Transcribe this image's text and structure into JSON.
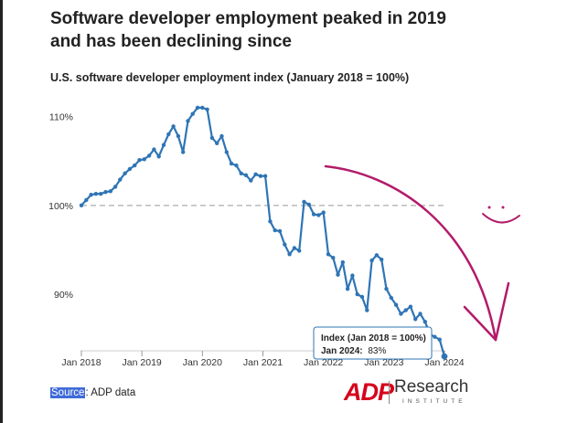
{
  "title": "Software developer employment peaked in 2019 and has been declining since",
  "subtitle": "U.S. software developer employment index (January 2018 = 100%)",
  "source": {
    "label": "Source",
    "text": ": ADP data"
  },
  "logo": {
    "mark": "ADP",
    "brand": "Research",
    "sub": "INSTITUTE"
  },
  "tooltip": {
    "header": "Index (Jan 2018 = 100%)",
    "date_label": "Jan 2024:",
    "value_label": "83%"
  },
  "colors": {
    "line": "#2f75b5",
    "reference": "#bbbbbb",
    "annotation": "#b31b6a",
    "tooltip_border": "#2f75b5"
  },
  "annotation": {
    "type": "hand-drawn downward arrow with smiley",
    "color": "#b31b6a"
  },
  "chart_data": {
    "type": "line",
    "title": "U.S. software developer employment index (January 2018 = 100%)",
    "x_ticks": [
      "Jan 2018",
      "Jan 2019",
      "Jan 2020",
      "Jan 2021",
      "Jan 2022",
      "Jan 2023",
      "Jan 2024"
    ],
    "y_ticks": [
      "90%",
      "100%",
      "110%"
    ],
    "y_tick_values": [
      90,
      100,
      110
    ],
    "ylim": [
      82.5,
      111.5
    ],
    "x_start": "2018-01",
    "x_end": "2024-01",
    "reference_line": 100,
    "grid": false,
    "series": [
      {
        "values": [
          100.0,
          100.6,
          101.2,
          101.3,
          101.3,
          101.5,
          101.6,
          102.1,
          102.9,
          103.6,
          104.1,
          104.5,
          105.1,
          105.2,
          105.6,
          106.3,
          105.5,
          106.8,
          108.0,
          108.9,
          107.8,
          106.0,
          109.5,
          110.3,
          111.0,
          111.0,
          110.8,
          107.6,
          107.0,
          107.8,
          106.0,
          104.7,
          104.5,
          103.6,
          103.4,
          102.8,
          103.5,
          103.3,
          103.3,
          98.2,
          97.2,
          97.1,
          95.6,
          94.5,
          95.2,
          94.9,
          100.4,
          100.1,
          99.0,
          98.9,
          99.2,
          94.5,
          94.1,
          92.2,
          93.6,
          90.6,
          92.1,
          90.0,
          89.7,
          88.2,
          93.8,
          94.4,
          93.9,
          90.6,
          89.6,
          88.8,
          87.8,
          88.2,
          88.6,
          87.2,
          87.8,
          86.9,
          85.5,
          85.2,
          84.9,
          83.0
        ],
        "end_point": {
          "x": "Jan 2024",
          "y": 83
        }
      }
    ]
  }
}
